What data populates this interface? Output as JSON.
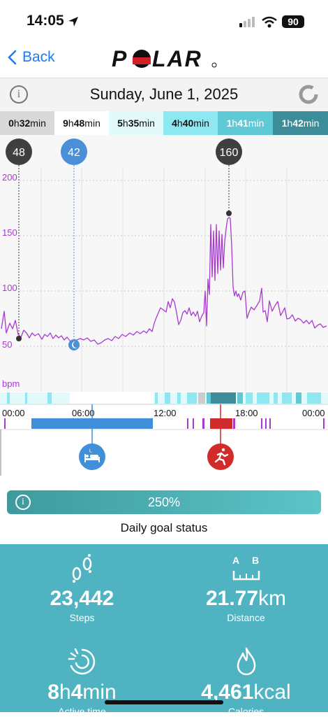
{
  "status_bar": {
    "time": "14:05",
    "battery": "90"
  },
  "nav": {
    "back_label": "Back",
    "brand": "POLAR"
  },
  "header": {
    "date": "Sunday, June 1, 2025"
  },
  "zones": [
    {
      "h": "0",
      "m": "32",
      "bg": "#d9d9d9",
      "fg": "#111111"
    },
    {
      "h": "9",
      "m": "48",
      "bg": "#ffffff",
      "fg": "#111111"
    },
    {
      "h": "5",
      "m": "35",
      "bg": "#e3fafc",
      "fg": "#111111"
    },
    {
      "h": "4",
      "m": "40",
      "bg": "#8ee8f2",
      "fg": "#111111"
    },
    {
      "h": "1",
      "m": "41",
      "bg": "#5fcad5",
      "fg": "#ffffff"
    },
    {
      "h": "1",
      "m": "42",
      "bg": "#3c8d99",
      "fg": "#ffffff"
    }
  ],
  "chart": {
    "y_ticks": [
      "200",
      "150",
      "100",
      "50"
    ],
    "unit": "bpm",
    "x_ticks": [
      "00:00",
      "06:00",
      "12:00",
      "18:00",
      "00:00"
    ],
    "markers": {
      "min": "48",
      "sleep": "42",
      "max": "160"
    }
  },
  "goal": {
    "percent": "250%",
    "label": "Daily goal status"
  },
  "stats": {
    "steps": {
      "value": "23,442",
      "label": "Steps"
    },
    "distance": {
      "value": "21.77",
      "unit": "km",
      "label": "Distance"
    },
    "active": {
      "h": "8",
      "m": "4",
      "label": "Active time"
    },
    "calories": {
      "value": "4,461",
      "unit": "kcal",
      "label": "Calories"
    }
  },
  "colors": {
    "accent": "#1a7bf2",
    "hr_line": "#a83ad0",
    "sleep": "#4a90d9",
    "exercise": "#d12b2b",
    "panel": "#4fb3c2"
  }
}
